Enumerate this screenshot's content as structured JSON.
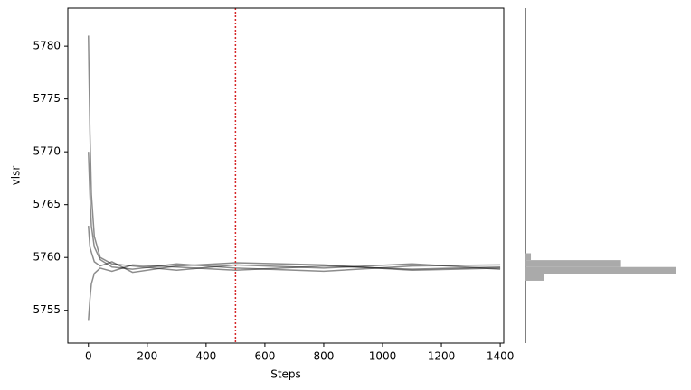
{
  "chart_data": {
    "type": "line",
    "xlabel": "Steps",
    "ylabel": "vlsr",
    "x": [
      0,
      5,
      10,
      20,
      40,
      80,
      150,
      300,
      500,
      800,
      1100,
      1400
    ],
    "series": [
      {
        "color": "#000000",
        "values": [
          5781,
          5772,
          5766,
          5762,
          5760,
          5759.4,
          5759.2,
          5758.8,
          5759.3,
          5759.0,
          5759.4,
          5758.9
        ]
      },
      {
        "color": "#000000",
        "values": [
          5754,
          5756,
          5757.5,
          5758.5,
          5759,
          5758.7,
          5759.3,
          5759.1,
          5758.8,
          5759.2,
          5758.9,
          5759.1
        ]
      },
      {
        "color": "#000000",
        "values": [
          5770,
          5766,
          5763,
          5761,
          5759.8,
          5759.1,
          5758.9,
          5759.4,
          5759.0,
          5758.7,
          5759.2,
          5759.3
        ]
      },
      {
        "color": "#000000",
        "values": [
          5763,
          5761,
          5760.5,
          5759.6,
          5759.2,
          5759.6,
          5758.6,
          5759.2,
          5759.5,
          5759.3,
          5758.8,
          5759.0
        ]
      }
    ],
    "vline_x": 500,
    "vline_color": "#d62728",
    "xlim": [
      -70,
      1412
    ],
    "ylim": [
      5751.9,
      5783.6
    ],
    "xticks": [
      0,
      200,
      400,
      600,
      800,
      1000,
      1200,
      1400
    ],
    "yticks": [
      5755,
      5760,
      5765,
      5770,
      5775,
      5780
    ],
    "histogram": {
      "type": "histogram",
      "orientation": "horizontal",
      "color": "#aaaaaa",
      "bins": [
        5757.8,
        5758.45,
        5759.1,
        5759.75,
        5760.4
      ],
      "counts": [
        20,
        165,
        105,
        6
      ]
    }
  }
}
